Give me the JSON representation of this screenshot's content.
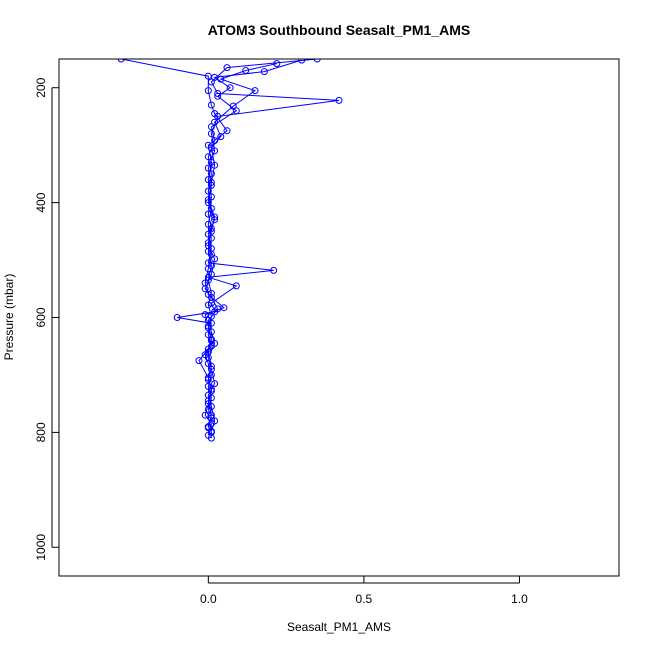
{
  "chart_data": {
    "type": "scatter",
    "title": "ATOM3 Southbound Seasalt_PM1_AMS",
    "xlabel": "Seasalt_PM1_AMS",
    "ylabel": "Pressure (mbar)",
    "xlim": [
      -0.48,
      1.32
    ],
    "ylim": [
      1050,
      150
    ],
    "y_reversed": true,
    "x_ticks": [
      0.0,
      0.5,
      1.0
    ],
    "x_tick_labels": [
      "0.0",
      "0.5",
      "1.0"
    ],
    "y_ticks": [
      200,
      400,
      600,
      800,
      1000
    ],
    "y_tick_labels": [
      "200",
      "400",
      "600",
      "800",
      "1000"
    ],
    "grid": false,
    "legend": "none",
    "series_color": "#0000ff",
    "marker": "open-circle",
    "series": [
      {
        "values_xy": [
          [
            0.01,
            810
          ],
          [
            0.01,
            800
          ],
          [
            0.0,
            790
          ],
          [
            0.01,
            775
          ],
          [
            0.0,
            760
          ],
          [
            0.01,
            740
          ],
          [
            0.0,
            720
          ],
          [
            0.01,
            700
          ],
          [
            0.0,
            680
          ],
          [
            -0.01,
            665
          ],
          [
            0.01,
            650
          ],
          [
            0.0,
            630
          ],
          [
            0.01,
            610
          ],
          [
            -0.1,
            600
          ],
          [
            0.02,
            590
          ],
          [
            0.01,
            575
          ],
          [
            0.09,
            545
          ],
          [
            0.0,
            530
          ],
          [
            0.21,
            518
          ],
          [
            0.0,
            505
          ],
          [
            0.01,
            480
          ],
          [
            0.0,
            455
          ],
          [
            0.02,
            430
          ],
          [
            0.0,
            400
          ],
          [
            0.01,
            370
          ],
          [
            0.0,
            340
          ],
          [
            0.02,
            310
          ],
          [
            0.01,
            280
          ],
          [
            0.03,
            250
          ],
          [
            0.42,
            222
          ],
          [
            0.03,
            210
          ],
          [
            0.01,
            190
          ],
          [
            0.06,
            165
          ],
          [
            0.35,
            150
          ]
        ]
      },
      {
        "values_xy": [
          [
            0.0,
            805
          ],
          [
            0.01,
            785
          ],
          [
            -0.01,
            770
          ],
          [
            0.0,
            750
          ],
          [
            0.01,
            725
          ],
          [
            0.0,
            705
          ],
          [
            -0.03,
            675
          ],
          [
            0.0,
            655
          ],
          [
            0.01,
            640
          ],
          [
            0.0,
            615
          ],
          [
            -0.01,
            595
          ],
          [
            0.05,
            583
          ],
          [
            0.0,
            560
          ],
          [
            -0.01,
            540
          ],
          [
            0.0,
            515
          ],
          [
            0.01,
            490
          ],
          [
            0.0,
            470
          ],
          [
            0.01,
            445
          ],
          [
            0.0,
            420
          ],
          [
            0.01,
            390
          ],
          [
            0.0,
            360
          ],
          [
            0.01,
            330
          ],
          [
            0.0,
            300
          ],
          [
            0.06,
            275
          ],
          [
            0.02,
            245
          ],
          [
            0.01,
            230
          ],
          [
            0.0,
            205
          ],
          [
            0.0,
            180
          ],
          [
            -0.28,
            150
          ]
        ]
      },
      {
        "values_xy": [
          [
            0.01,
            798
          ],
          [
            0.02,
            780
          ],
          [
            0.01,
            755
          ],
          [
            0.0,
            735
          ],
          [
            0.02,
            715
          ],
          [
            0.01,
            690
          ],
          [
            0.0,
            670
          ],
          [
            0.02,
            645
          ],
          [
            0.01,
            625
          ],
          [
            0.0,
            605
          ],
          [
            0.03,
            585
          ],
          [
            0.01,
            565
          ],
          [
            -0.01,
            550
          ],
          [
            0.01,
            525
          ],
          [
            0.02,
            498
          ],
          [
            0.0,
            475
          ],
          [
            0.01,
            450
          ],
          [
            0.02,
            425
          ],
          [
            0.0,
            395
          ],
          [
            0.01,
            365
          ],
          [
            0.02,
            335
          ],
          [
            0.01,
            305
          ],
          [
            0.04,
            285
          ],
          [
            0.02,
            260
          ],
          [
            0.08,
            232
          ],
          [
            0.15,
            205
          ],
          [
            0.04,
            185
          ],
          [
            0.12,
            170
          ],
          [
            0.22,
            158
          ]
        ]
      },
      {
        "values_xy": [
          [
            0.0,
            792
          ],
          [
            0.01,
            770
          ],
          [
            0.0,
            745
          ],
          [
            0.01,
            728
          ],
          [
            0.0,
            708
          ],
          [
            0.01,
            685
          ],
          [
            0.0,
            660
          ],
          [
            0.01,
            638
          ],
          [
            0.0,
            618
          ],
          [
            0.01,
            598
          ],
          [
            0.0,
            578
          ],
          [
            0.01,
            558
          ],
          [
            0.0,
            535
          ],
          [
            0.01,
            510
          ],
          [
            0.0,
            485
          ],
          [
            0.01,
            462
          ],
          [
            0.0,
            438
          ],
          [
            0.01,
            410
          ],
          [
            0.0,
            380
          ],
          [
            0.01,
            350
          ],
          [
            0.0,
            320
          ],
          [
            0.02,
            292
          ],
          [
            0.01,
            268
          ],
          [
            0.09,
            240
          ],
          [
            0.03,
            215
          ],
          [
            0.07,
            200
          ],
          [
            0.02,
            182
          ],
          [
            0.18,
            172
          ],
          [
            0.3,
            152
          ]
        ]
      }
    ]
  }
}
